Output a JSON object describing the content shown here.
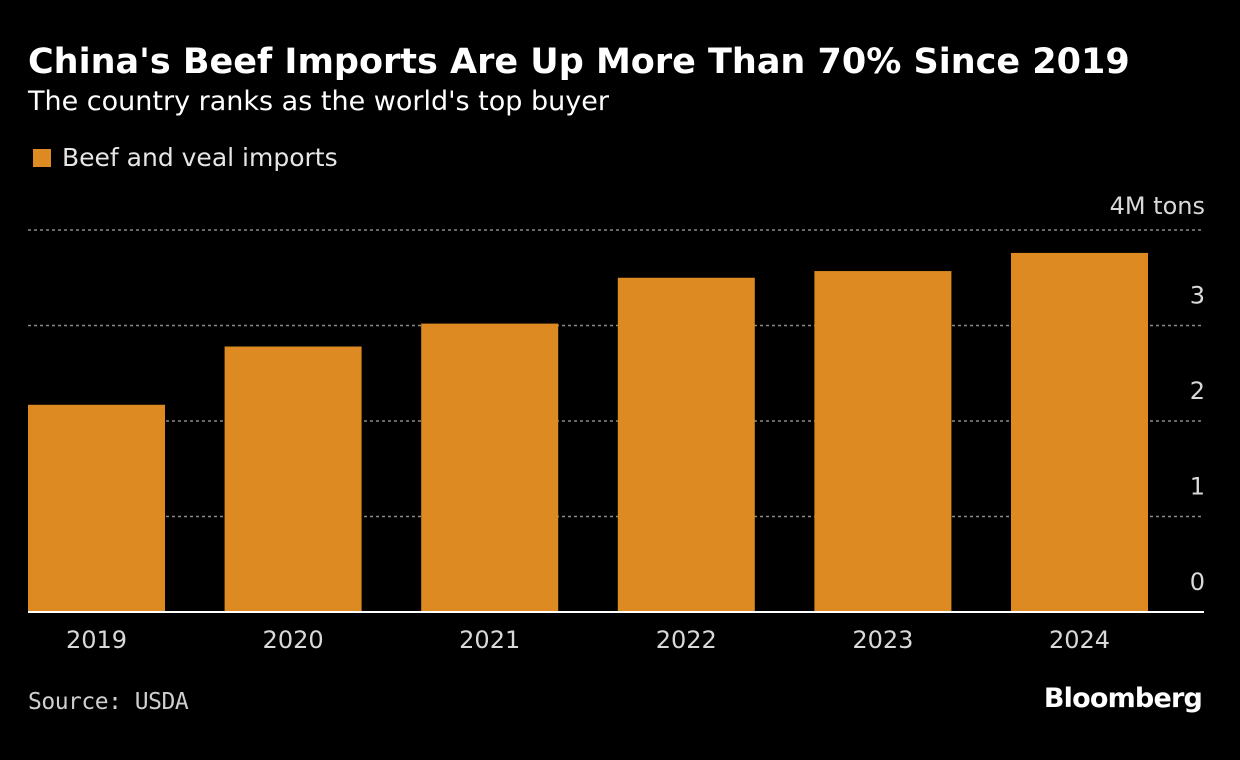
{
  "header": {
    "title": "China's Beef Imports Are Up More Than 70% Since 2019",
    "subtitle": "The country ranks as the world's top buyer"
  },
  "colors": {
    "background": "#000000",
    "bar": "#dd8a22",
    "gridline": "#8a8a8a",
    "axis_text": "#d9d9d9"
  },
  "chart_data": {
    "type": "bar",
    "title": "China's Beef Imports Are Up More Than 70% Since 2019",
    "subtitle": "The country ranks as the world's top buyer",
    "categories": [
      "2019",
      "2020",
      "2021",
      "2022",
      "2023",
      "2024"
    ],
    "series": [
      {
        "name": "Beef and veal imports",
        "values": [
          2.17,
          2.78,
          3.02,
          3.5,
          3.57,
          3.76
        ]
      }
    ],
    "xlabel": "",
    "ylabel": "",
    "yunit_label": "4M tons",
    "ylim": [
      0,
      4
    ],
    "yticks": [
      {
        "value": 0,
        "label": "0"
      },
      {
        "value": 1,
        "label": "1"
      },
      {
        "value": 2,
        "label": "2"
      },
      {
        "value": 3,
        "label": "3"
      },
      {
        "value": 4,
        "label": "4M tons"
      }
    ],
    "grid": true,
    "legend_position": "top-left",
    "yaxis_position": "right"
  },
  "footer": {
    "source": "Source: USDA",
    "brand": "Bloomberg"
  }
}
